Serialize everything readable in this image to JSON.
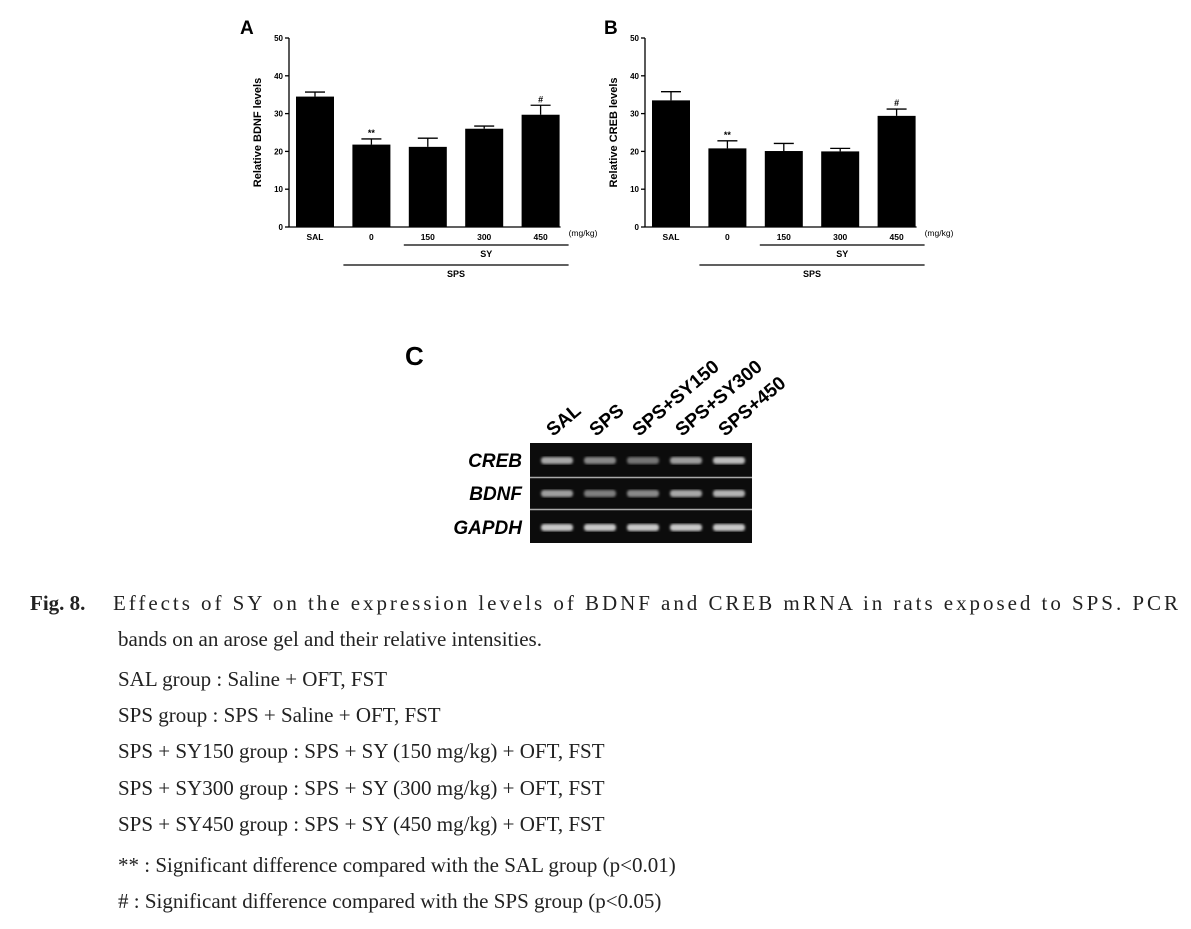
{
  "chart_data": [
    {
      "type": "bar",
      "panel_label": "A",
      "ylabel": "Relative BDNF levels",
      "color": "#000000",
      "categories": [
        "SAL",
        "0",
        "150",
        "300",
        "450"
      ],
      "values": [
        34.5,
        21.8,
        21.2,
        26,
        29.7
      ],
      "errors": [
        1.2,
        1.5,
        2.3,
        0.7,
        2.5
      ],
      "annotations": [
        null,
        "**",
        null,
        null,
        "#"
      ],
      "unit_label": "(mg/kg)",
      "groups": [
        "SY",
        "SPS"
      ],
      "ylim": [
        0,
        50
      ],
      "yticks": [
        0,
        10,
        20,
        30,
        40,
        50
      ]
    },
    {
      "type": "bar",
      "panel_label": "B",
      "ylabel": "Relative CREB levels",
      "color": "#000000",
      "categories": [
        "SAL",
        "0",
        "150",
        "300",
        "450"
      ],
      "values": [
        33.5,
        20.8,
        20.1,
        20,
        29.4
      ],
      "errors": [
        2.3,
        2.0,
        2.0,
        0.8,
        1.8
      ],
      "annotations": [
        null,
        "**",
        null,
        null,
        "#"
      ],
      "unit_label": "(mg/kg)",
      "groups": [
        "SY",
        "SPS"
      ],
      "ylim": [
        0,
        50
      ],
      "yticks": [
        0,
        10,
        20,
        30,
        40,
        50
      ]
    }
  ],
  "gel": {
    "panel_label": "C",
    "lanes": [
      "SAL",
      "SPS",
      "SPS+SY150",
      "SPS+SY300",
      "SPS+450"
    ],
    "rows": [
      "CREB",
      "BDNF",
      "GAPDH"
    ]
  },
  "caption": {
    "label": "Fig. 8.",
    "lines": [
      "Effects of SY on the expression levels of BDNF and CREB mRNA in rats exposed to SPS. PCR",
      "bands on an arose gel and their relative intensities.",
      "SAL group : Saline + OFT, FST",
      "SPS group : SPS + Saline + OFT, FST",
      "SPS + SY150 group : SPS + SY (150 mg/kg) + OFT, FST",
      "SPS + SY300 group : SPS + SY (300 mg/kg) + OFT, FST",
      "SPS + SY450 group : SPS + SY (450 mg/kg) + OFT, FST",
      "** : Significant difference compared with the SAL group (p<0.01)",
      "# : Significant difference compared with the SPS group (p<0.05)"
    ]
  }
}
